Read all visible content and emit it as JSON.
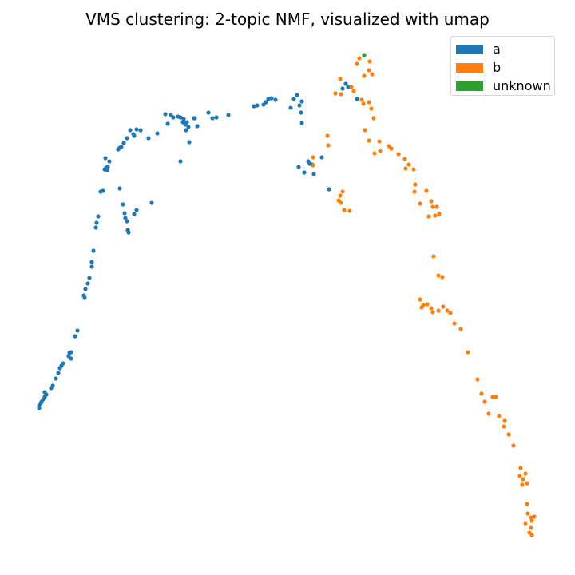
{
  "chart_data": {
    "type": "scatter",
    "title": "VMS clustering: 2-topic NMF, visualized with umap",
    "axes_visible": false,
    "legend_position": "top-right",
    "series": [
      {
        "name": "a",
        "color": "#1f77b4",
        "points": [
          [
            49,
            508
          ],
          [
            49,
            511
          ],
          [
            51,
            505
          ],
          [
            52,
            503
          ],
          [
            54,
            500
          ],
          [
            56,
            497
          ],
          [
            56,
            491
          ],
          [
            58,
            494
          ],
          [
            64,
            486
          ],
          [
            66,
            483
          ],
          [
            70,
            474
          ],
          [
            73,
            467
          ],
          [
            75,
            461
          ],
          [
            77,
            458
          ],
          [
            79,
            455
          ],
          [
            86,
            446
          ],
          [
            87,
            442
          ],
          [
            89,
            449
          ],
          [
            89,
            441
          ],
          [
            94,
            421
          ],
          [
            97,
            414
          ],
          [
            105,
            370
          ],
          [
            106,
            373
          ],
          [
            107,
            362
          ],
          [
            110,
            355
          ],
          [
            112,
            348
          ],
          [
            115,
            334
          ],
          [
            115,
            328
          ],
          [
            117,
            314
          ],
          [
            120,
            285
          ],
          [
            121,
            279
          ],
          [
            123,
            271
          ],
          [
            126,
            240
          ],
          [
            129,
            239
          ],
          [
            131,
            212
          ],
          [
            133,
            210
          ],
          [
            132,
            198
          ],
          [
            134,
            213
          ],
          [
            135,
            209
          ],
          [
            137,
            202
          ],
          [
            148,
            187
          ],
          [
            150,
            185
          ],
          [
            152,
            184
          ],
          [
            155,
            179
          ],
          [
            159,
            173
          ],
          [
            163,
            163
          ],
          [
            167,
            168
          ],
          [
            168,
            170
          ],
          [
            171,
            162
          ],
          [
            176,
            163
          ],
          [
            186,
            173
          ],
          [
            197,
            167
          ],
          [
            207,
            143
          ],
          [
            210,
            155
          ],
          [
            214,
            144
          ],
          [
            217,
            147
          ],
          [
            223,
            146
          ],
          [
            226,
            147
          ],
          [
            229,
            153
          ],
          [
            230,
            149
          ],
          [
            232,
            156
          ],
          [
            233,
            163
          ],
          [
            234,
            153
          ],
          [
            236,
            159
          ],
          [
            237,
            178
          ],
          [
            244,
            148
          ],
          [
            247,
            158
          ],
          [
            243,
            148
          ],
          [
            261,
            141
          ],
          [
            266,
            148
          ],
          [
            271,
            147
          ],
          [
            286,
            144
          ],
          [
            318,
            133
          ],
          [
            322,
            132
          ],
          [
            330,
            131
          ],
          [
            333,
            128
          ],
          [
            336,
            124
          ],
          [
            340,
            123
          ],
          [
            345,
            125
          ],
          [
            364,
            135
          ],
          [
            368,
            124
          ],
          [
            372,
            119
          ],
          [
            375,
            132
          ],
          [
            378,
            127
          ],
          [
            377,
            141
          ],
          [
            378,
            154
          ],
          [
            374,
            209
          ],
          [
            381,
            216
          ],
          [
            386,
            202
          ],
          [
            388,
            205
          ],
          [
            391,
            206
          ],
          [
            393,
            218
          ],
          [
            403,
            197
          ],
          [
            412,
            237
          ],
          [
            429,
            111
          ],
          [
            433,
            105
          ],
          [
            436,
            109
          ],
          [
            447,
            124
          ],
          [
            226,
            202
          ],
          [
            150,
            236
          ],
          [
            154,
            256
          ],
          [
            156,
            267
          ],
          [
            157,
            273
          ],
          [
            159,
            277
          ],
          [
            160,
            288
          ],
          [
            161,
            291
          ],
          [
            168,
            268
          ],
          [
            171,
            263
          ],
          [
            190,
            254
          ]
        ]
      },
      {
        "name": "b",
        "color": "#ff7f0e",
        "points": [
          [
            420,
            117
          ],
          [
            427,
            118
          ],
          [
            426,
            99
          ],
          [
            440,
            109
          ],
          [
            443,
            114
          ],
          [
            447,
            80
          ],
          [
            450,
            73
          ],
          [
            456,
            95
          ],
          [
            462,
            88
          ],
          [
            463,
            77
          ],
          [
            466,
            93
          ],
          [
            453,
            125
          ],
          [
            455,
            130
          ],
          [
            462,
            128
          ],
          [
            465,
            136
          ],
          [
            468,
            148
          ],
          [
            457,
            163
          ],
          [
            462,
            176
          ],
          [
            469,
            192
          ],
          [
            475,
            177
          ],
          [
            476,
            189
          ],
          [
            487,
            183
          ],
          [
            490,
            186
          ],
          [
            499,
            193
          ],
          [
            507,
            199
          ],
          [
            508,
            211
          ],
          [
            512,
            206
          ],
          [
            518,
            212
          ],
          [
            520,
            231
          ],
          [
            519,
            240
          ],
          [
            526,
            255
          ],
          [
            534,
            239
          ],
          [
            540,
            252
          ],
          [
            542,
            259
          ],
          [
            547,
            259
          ],
          [
            550,
            268
          ],
          [
            545,
            270
          ],
          [
            537,
            271
          ],
          [
            543,
            321
          ],
          [
            549,
            345
          ],
          [
            554,
            347
          ],
          [
            526,
            375
          ],
          [
            530,
            382
          ],
          [
            528,
            385
          ],
          [
            535,
            381
          ],
          [
            540,
            386
          ],
          [
            542,
            391
          ],
          [
            549,
            389
          ],
          [
            555,
            384
          ],
          [
            560,
            389
          ],
          [
            564,
            392
          ],
          [
            569,
            405
          ],
          [
            577,
            412
          ],
          [
            586,
            441
          ],
          [
            598,
            475
          ],
          [
            603,
            493
          ],
          [
            607,
            503
          ],
          [
            612,
            518
          ],
          [
            617,
            497
          ],
          [
            621,
            497
          ],
          [
            625,
            521
          ],
          [
            632,
            527
          ],
          [
            631,
            534
          ],
          [
            637,
            544
          ],
          [
            643,
            558
          ],
          [
            652,
            586
          ],
          [
            658,
            593
          ],
          [
            651,
            596
          ],
          [
            655,
            600
          ],
          [
            660,
            605
          ],
          [
            654,
            607
          ],
          [
            660,
            631
          ],
          [
            661,
            643
          ],
          [
            665,
            648
          ],
          [
            669,
            647
          ],
          [
            666,
            652
          ],
          [
            665,
            661
          ],
          [
            658,
            656
          ],
          [
            663,
            667
          ],
          [
            666,
            670
          ],
          [
            410,
            170
          ],
          [
            411,
            182
          ],
          [
            392,
            197
          ],
          [
            392,
            207
          ],
          [
            426,
            245
          ],
          [
            429,
            240
          ],
          [
            424,
            251
          ],
          [
            427,
            254
          ],
          [
            431,
            263
          ],
          [
            438,
            264
          ]
        ]
      },
      {
        "name": "unknown",
        "color": "#2ca02c",
        "points": [
          [
            456,
            69
          ]
        ]
      }
    ]
  }
}
